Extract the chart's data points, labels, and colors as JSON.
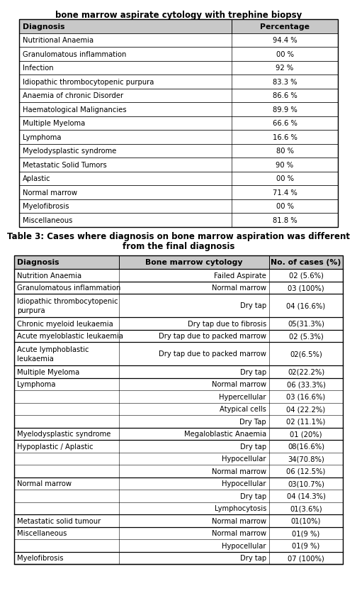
{
  "title1": "bone marrow aspirate cytology with trephine biopsy",
  "table1_headers": [
    "Diagnosis",
    "Percentage"
  ],
  "table1_rows": [
    [
      "Nutritional Anaemia",
      "94.4 %"
    ],
    [
      "Granulomatous inflammation",
      "00 %"
    ],
    [
      "Infection",
      "92 %"
    ],
    [
      "Idiopathic thrombocytopenic purpura",
      "83.3 %"
    ],
    [
      "Anaemia of chronic Disorder",
      "86.6 %"
    ],
    [
      "Haematological Malignancies",
      "89.9 %"
    ],
    [
      "Multiple Myeloma",
      "66.6 %"
    ],
    [
      "Lymphoma",
      "16.6 %"
    ],
    [
      "Myelodysplastic syndrome",
      "80 %"
    ],
    [
      "Metastatic Solid Tumors",
      "90 %"
    ],
    [
      "Aplastic",
      "00 %"
    ],
    [
      "Normal marrow",
      "71.4 %"
    ],
    [
      "Myelofibrosis",
      "00 %"
    ],
    [
      "Miscellaneous",
      "81.8 %"
    ]
  ],
  "caption_line1": "Table 3: Cases where diagnosis on bone marrow aspiration was different",
  "caption_line2": "from the final diagnosis",
  "table2_headers": [
    "Diagnosis",
    "Bone marrow cytology",
    "No. of cases (%)"
  ],
  "table2_rows": [
    [
      "Nutrition Anaemia",
      "Failed Aspirate",
      "02 (5.6%)"
    ],
    [
      "Granulomatous inflammation",
      "Normal marrow",
      "03 (100%)"
    ],
    [
      "Idiopathic thrombocytopenic\npurpura",
      "Dry tap",
      "04 (16.6%)"
    ],
    [
      "Chronic myeloid leukaemia",
      "Dry tap due to fibrosis",
      "05(31.3%)"
    ],
    [
      "Acute myeloblastic leukaemia",
      "Dry tap due to packed marrow",
      "02 (5.3%)"
    ],
    [
      "Acute lymphoblastic\nleukaemia",
      "Dry tap due to packed marrow",
      "02(6.5%)"
    ],
    [
      "Multiple Myeloma",
      "Dry tap",
      "02(22.2%)"
    ],
    [
      "Lymphoma",
      "Normal marrow",
      "06 (33.3%)"
    ],
    [
      "",
      "Hypercellular",
      "03 (16.6%)"
    ],
    [
      "",
      "Atypical cells",
      "04 (22.2%)"
    ],
    [
      "",
      "Dry Tap",
      "02 (11.1%)"
    ],
    [
      "Myelodysplastic syndrome",
      "Megaloblastic Anaemia",
      "01 (20%)"
    ],
    [
      "Hypoplastic / Aplastic",
      "Dry tap",
      "08(16.6%)"
    ],
    [
      "",
      "Hypocellular",
      "34(70.8%)"
    ],
    [
      "",
      "Normal marrow",
      "06 (12.5%)"
    ],
    [
      "Normal marrow",
      "Hypocellular",
      "03(10.7%)"
    ],
    [
      "",
      "Dry tap",
      "04 (14.3%)"
    ],
    [
      "",
      "Lymphocytosis",
      "01(3.6%)"
    ],
    [
      "Metastatic solid tumour",
      "Normal marrow",
      "01(10%)"
    ],
    [
      "Miscellaneous",
      "Normal marrow",
      "01(9 %)"
    ],
    [
      "",
      "Hypocellular",
      "01(9 %)"
    ],
    [
      "Myelofibrosis",
      "Dry tap",
      "07 (100%)"
    ]
  ],
  "header_bg": "#c8c8c8",
  "border_color": "#000000",
  "text_color": "#000000",
  "title_fontsize": 8.5,
  "header_fontsize": 7.8,
  "cell_fontsize": 7.2,
  "caption_fontsize": 8.5
}
